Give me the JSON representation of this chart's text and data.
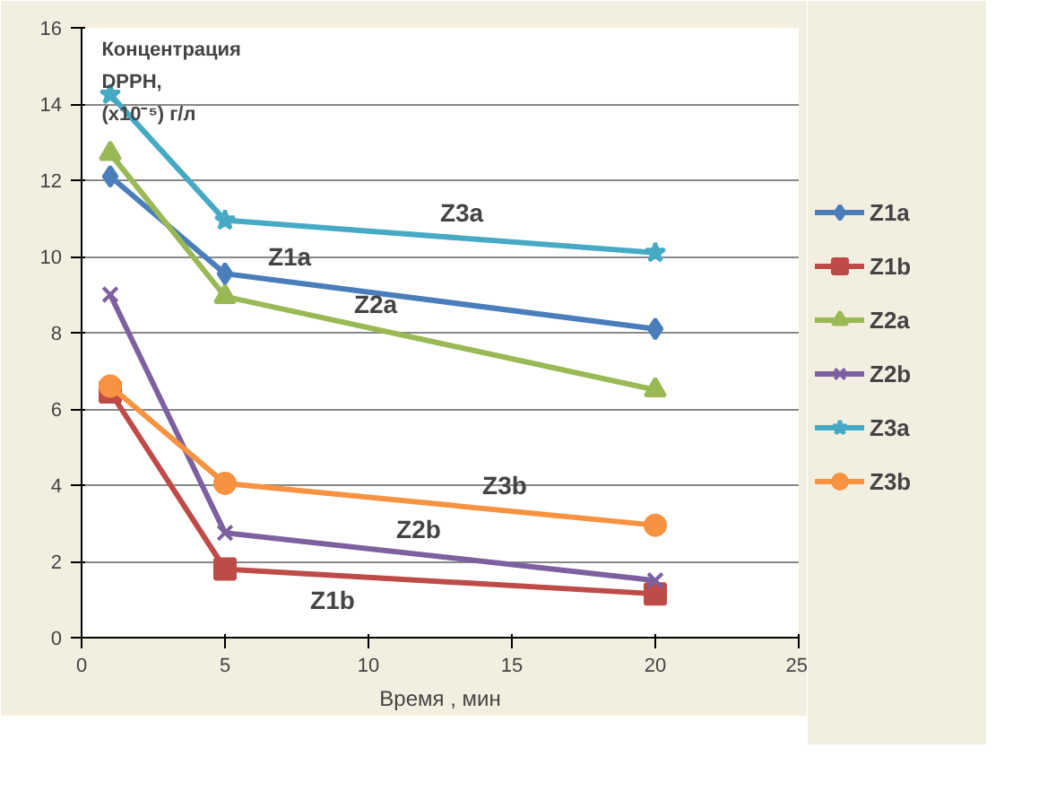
{
  "chart_data": {
    "type": "line",
    "xlabel": "Время , мин",
    "ylabel": "Концентрация DPPH, (x10⁻⁵) г/л",
    "x": [
      1,
      5,
      20
    ],
    "xlim": [
      0,
      25
    ],
    "xticks": [
      0,
      5,
      10,
      15,
      20,
      25
    ],
    "ylim": [
      0,
      16
    ],
    "yticks": [
      0,
      2,
      4,
      6,
      8,
      10,
      12,
      14,
      16
    ],
    "grid": "y",
    "legend": "right",
    "series": [
      {
        "name": "Z1a",
        "color": "#4a7ebb",
        "marker": "diamond",
        "values": [
          12.1,
          9.55,
          8.1
        ]
      },
      {
        "name": "Z1b",
        "color": "#be4b48",
        "marker": "square",
        "values": [
          6.45,
          1.8,
          1.15
        ]
      },
      {
        "name": "Z2a",
        "color": "#98b954",
        "marker": "triangle",
        "values": [
          12.7,
          8.95,
          6.5
        ]
      },
      {
        "name": "Z2b",
        "color": "#7d60a0",
        "marker": "cross",
        "values": [
          9.0,
          2.75,
          1.5
        ]
      },
      {
        "name": "Z3a",
        "color": "#46aac5",
        "marker": "star",
        "values": [
          14.25,
          10.95,
          10.1
        ]
      },
      {
        "name": "Z3b",
        "color": "#f69240",
        "marker": "circle",
        "values": [
          6.6,
          4.05,
          2.95
        ]
      }
    ]
  }
}
